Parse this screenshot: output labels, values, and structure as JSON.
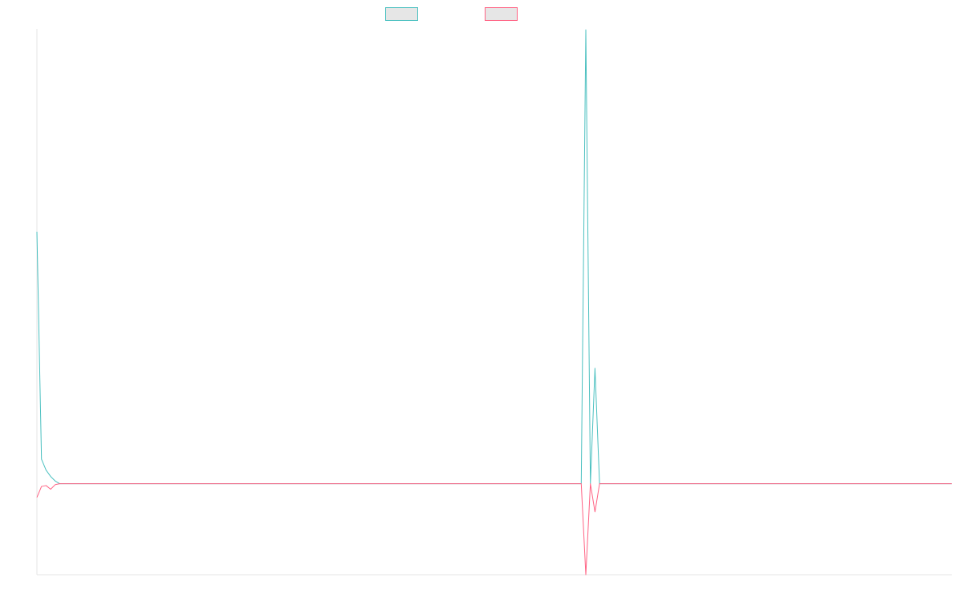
{
  "chart_data": {
    "type": "line",
    "title": "",
    "xlabel": "",
    "ylabel": "",
    "grid": false,
    "legend": "top-center",
    "ylim": [
      -1.0,
      5.0
    ],
    "x": [
      0,
      1,
      2,
      3,
      4,
      5,
      6,
      7,
      8,
      9,
      10,
      11,
      12,
      13,
      14,
      15,
      16,
      17,
      18,
      19,
      20,
      21,
      22,
      23,
      24,
      25,
      26,
      27,
      28,
      29,
      30,
      31,
      32,
      33,
      34,
      35,
      36,
      37,
      38,
      39,
      40,
      41,
      42,
      43,
      44,
      45,
      46,
      47,
      48,
      49,
      50,
      51,
      52,
      53,
      54,
      55,
      56,
      57,
      58,
      59,
      60,
      61,
      62,
      63,
      64,
      65,
      66,
      67,
      68,
      69,
      70,
      71,
      72,
      73,
      74,
      75,
      76,
      77,
      78,
      79,
      80,
      81,
      82,
      83,
      84,
      85,
      86,
      87,
      88,
      89,
      90,
      91,
      92,
      93,
      94,
      95,
      96,
      97,
      98,
      99,
      100,
      101,
      102,
      103,
      104,
      105,
      106,
      107,
      108,
      109,
      110,
      111,
      112,
      113,
      114,
      115,
      116,
      117,
      118,
      119,
      120,
      121,
      122,
      123,
      124,
      125,
      126,
      127,
      128,
      129,
      130,
      131,
      132,
      133,
      134,
      135,
      136,
      137,
      138,
      139,
      140,
      141,
      142,
      143,
      144,
      145,
      146,
      147,
      148,
      149,
      150,
      151,
      152,
      153,
      154,
      155,
      156,
      157,
      158,
      159,
      160,
      161,
      162,
      163,
      164,
      165,
      166,
      167,
      168,
      169,
      170,
      171,
      172,
      173,
      174,
      175,
      176,
      177,
      178,
      179,
      180,
      181,
      182,
      183,
      184,
      185,
      186,
      187,
      188,
      189,
      190,
      191,
      192,
      193,
      194,
      195,
      196,
      197,
      198,
      199,
      200
    ],
    "series": [
      {
        "name": "",
        "color": "#4bc0c0",
        "values": [
          2.77,
          0.27,
          0.15,
          0.08,
          0.03,
          0.0,
          0.0,
          0.0,
          0.0,
          0.0,
          0.0,
          0.0,
          0.0,
          0.0,
          0.0,
          0.0,
          0.0,
          0.0,
          0.0,
          0.0,
          0.0,
          0.0,
          0.0,
          0.0,
          0.0,
          0.0,
          0.0,
          0.0,
          0.0,
          0.0,
          0.0,
          0.0,
          0.0,
          0.0,
          0.0,
          0.0,
          0.0,
          0.0,
          0.0,
          0.0,
          0.0,
          0.0,
          0.0,
          0.0,
          0.0,
          0.0,
          0.0,
          0.0,
          0.0,
          0.0,
          0.0,
          0.0,
          0.0,
          0.0,
          0.0,
          0.0,
          0.0,
          0.0,
          0.0,
          0.0,
          0.0,
          0.0,
          0.0,
          0.0,
          0.0,
          0.0,
          0.0,
          0.0,
          0.0,
          0.0,
          0.0,
          0.0,
          0.0,
          0.0,
          0.0,
          0.0,
          0.0,
          0.0,
          0.0,
          0.0,
          0.0,
          0.0,
          0.0,
          0.0,
          0.0,
          0.0,
          0.0,
          0.0,
          0.0,
          0.0,
          0.0,
          0.0,
          0.0,
          0.0,
          0.0,
          0.0,
          0.0,
          0.0,
          0.0,
          0.0,
          0.0,
          0.0,
          0.0,
          0.0,
          0.0,
          0.0,
          0.0,
          0.0,
          0.0,
          0.0,
          0.0,
          0.0,
          0.0,
          0.0,
          0.0,
          0.0,
          0.0,
          0.0,
          0.0,
          0.0,
          4.99,
          0.0,
          1.27,
          0.0,
          0.0,
          0.0,
          0.0,
          0.0,
          0.0,
          0.0,
          0.0,
          0.0,
          0.0,
          0.0,
          0.0,
          0.0,
          0.0,
          0.0,
          0.0,
          0.0,
          0.0,
          0.0,
          0.0,
          0.0,
          0.0,
          0.0,
          0.0,
          0.0,
          0.0,
          0.0,
          0.0,
          0.0,
          0.0,
          0.0,
          0.0,
          0.0,
          0.0,
          0.0,
          0.0,
          0.0,
          0.0,
          0.0,
          0.0,
          0.0,
          0.0,
          0.0,
          0.0,
          0.0,
          0.0,
          0.0,
          0.0,
          0.0,
          0.0,
          0.0,
          0.0,
          0.0,
          0.0,
          0.0,
          0.0,
          0.0,
          0.0,
          0.0,
          0.0,
          0.0,
          0.0,
          0.0,
          0.0,
          0.0,
          0.0,
          0.0,
          0.0,
          0.0,
          0.0,
          0.0,
          0.0,
          0.0,
          0.0,
          0.0,
          0.0,
          0.0,
          0.0
        ]
      },
      {
        "name": "",
        "color": "#ff6384",
        "values": [
          -0.15,
          -0.03,
          -0.02,
          -0.06,
          -0.01,
          0.0,
          0.0,
          0.0,
          0.0,
          0.0,
          0.0,
          0.0,
          0.0,
          0.0,
          0.0,
          0.0,
          0.0,
          0.0,
          0.0,
          0.0,
          0.0,
          0.0,
          0.0,
          0.0,
          0.0,
          0.0,
          0.0,
          0.0,
          0.0,
          0.0,
          0.0,
          0.0,
          0.0,
          0.0,
          0.0,
          0.0,
          0.0,
          0.0,
          0.0,
          0.0,
          0.0,
          0.0,
          0.0,
          0.0,
          0.0,
          0.0,
          0.0,
          0.0,
          0.0,
          0.0,
          0.0,
          0.0,
          0.0,
          0.0,
          0.0,
          0.0,
          0.0,
          0.0,
          0.0,
          0.0,
          0.0,
          0.0,
          0.0,
          0.0,
          0.0,
          0.0,
          0.0,
          0.0,
          0.0,
          0.0,
          0.0,
          0.0,
          0.0,
          0.0,
          0.0,
          0.0,
          0.0,
          0.0,
          0.0,
          0.0,
          0.0,
          0.0,
          0.0,
          0.0,
          0.0,
          0.0,
          0.0,
          0.0,
          0.0,
          0.0,
          0.0,
          0.0,
          0.0,
          0.0,
          0.0,
          0.0,
          0.0,
          0.0,
          0.0,
          0.0,
          0.0,
          0.0,
          0.0,
          0.0,
          0.0,
          0.0,
          0.0,
          0.0,
          0.0,
          0.0,
          0.0,
          0.0,
          0.0,
          0.0,
          0.0,
          0.0,
          0.0,
          0.0,
          0.0,
          0.0,
          -1.0,
          0.0,
          -0.31,
          0.0,
          0.0,
          0.0,
          0.0,
          0.0,
          0.0,
          0.0,
          0.0,
          0.0,
          0.0,
          0.0,
          0.0,
          0.0,
          0.0,
          0.0,
          0.0,
          0.0,
          0.0,
          0.0,
          0.0,
          0.0,
          0.0,
          0.0,
          0.0,
          0.0,
          0.0,
          0.0,
          0.0,
          0.0,
          0.0,
          0.0,
          0.0,
          0.0,
          0.0,
          0.0,
          0.0,
          0.0,
          0.0,
          0.0,
          0.0,
          0.0,
          0.0,
          0.0,
          0.0,
          0.0,
          0.0,
          0.0,
          0.0,
          0.0,
          0.0,
          0.0,
          0.0,
          0.0,
          0.0,
          0.0,
          0.0,
          0.0,
          0.0,
          0.0,
          0.0,
          0.0,
          0.0,
          0.0,
          0.0,
          0.0,
          0.0,
          0.0,
          0.0,
          0.0,
          0.0,
          0.0,
          0.0,
          0.0,
          0.0,
          0.0,
          0.0,
          0.0,
          0.0
        ]
      }
    ]
  }
}
